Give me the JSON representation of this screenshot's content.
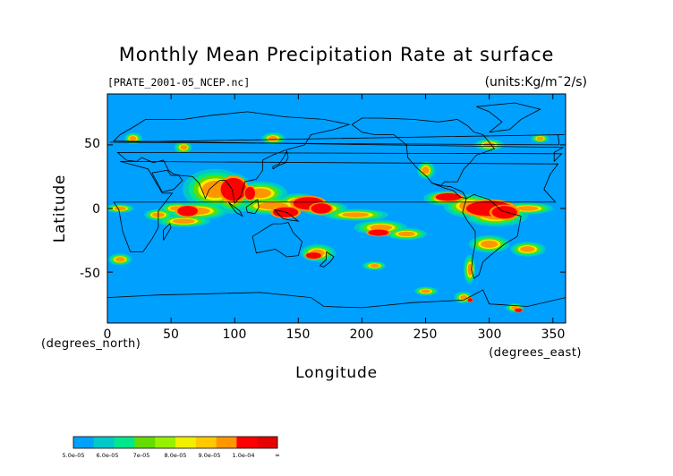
{
  "title": "Monthly Mean Precipitation Rate at surface",
  "source_file": "[PRATE_2001-05_NCEP.nc]",
  "units": "(units:Kg/m¯2/s)",
  "y_axis": {
    "label": "Latitude",
    "ticks": [
      "50",
      "0",
      "-50"
    ],
    "tick_values": [
      50,
      0,
      -50
    ],
    "unit_label": "(degrees_north)",
    "range": [
      -90,
      90
    ]
  },
  "x_axis": {
    "label": "Longitude",
    "ticks": [
      "0",
      "50",
      "100",
      "150",
      "200",
      "250",
      "300",
      "350"
    ],
    "tick_values": [
      0,
      50,
      100,
      150,
      200,
      250,
      300,
      350
    ],
    "unit_label": "(degrees_east)",
    "range": [
      0,
      360
    ]
  },
  "colors": {
    "background": "#00a0ff",
    "coast": "#000000"
  },
  "legend": {
    "labels": [
      "5.0e-05",
      "6.0e-05",
      "7e-05",
      "8.0e-05",
      "9.0e-05",
      "1.0e-04",
      "∞"
    ],
    "colors": [
      "#00a0ff",
      "#00c8c8",
      "#00e68c",
      "#64dc00",
      "#96f000",
      "#f0f000",
      "#ffc800",
      "#ff9600",
      "#ff0000",
      "#e60000"
    ]
  },
  "chart_data": {
    "type": "heatmap",
    "title": "Monthly Mean Precipitation Rate at surface",
    "xlabel": "Longitude",
    "ylabel": "Latitude",
    "xlim": [
      0,
      360
    ],
    "ylim": [
      -90,
      90
    ],
    "scale_bins": [
      "5.0e-05",
      "6.0e-05",
      "7e-05",
      "8.0e-05",
      "9.0e-05",
      "1.0e-04",
      "∞"
    ],
    "high_precip_regions": [
      {
        "lon": [
          85,
          110
        ],
        "lat": [
          5,
          25
        ],
        "level": "max"
      },
      {
        "lon": [
          60,
          80
        ],
        "lat": [
          -5,
          5
        ],
        "level": "max"
      },
      {
        "lon": [
          140,
          190
        ],
        "lat": [
          -5,
          10
        ],
        "level": "max"
      },
      {
        "lon": [
          255,
          330
        ],
        "lat": [
          -10,
          15
        ],
        "level": "max"
      },
      {
        "lon": [
          200,
          240
        ],
        "lat": [
          -25,
          -15
        ],
        "level": "high"
      },
      {
        "lon": [
          155,
          180
        ],
        "lat": [
          -40,
          -30
        ],
        "level": "high"
      }
    ]
  }
}
